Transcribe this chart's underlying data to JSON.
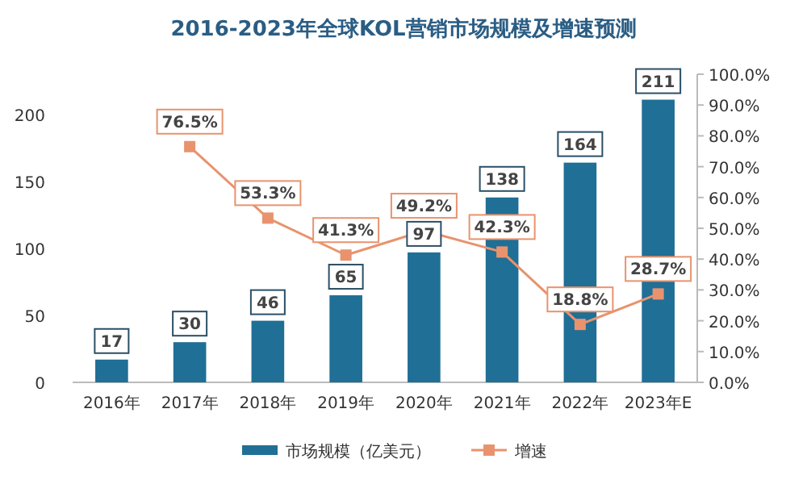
{
  "chart_data": {
    "type": "bar",
    "title": "2016-2023年全球KOL营销市场规模及增速预测",
    "categories": [
      "2016年",
      "2017年",
      "2018年",
      "2019年",
      "2020年",
      "2021年",
      "2022年",
      "2023年E"
    ],
    "series": [
      {
        "name": "市场规模（亿美元）",
        "color": "#1f6f96",
        "values": [
          17,
          30,
          46,
          65,
          97,
          138,
          164,
          211
        ],
        "value_labels": [
          "17",
          "30",
          "46",
          "65",
          "97",
          "138",
          "164",
          "211"
        ]
      },
      {
        "name": "增速",
        "type": "line",
        "axis": "y2",
        "color": "#e8936e",
        "marker": "square",
        "values": [
          null,
          76.5,
          53.3,
          41.3,
          49.2,
          42.3,
          18.8,
          28.7
        ],
        "value_labels": [
          null,
          "76.5%",
          "53.3%",
          "41.3%",
          "49.2%",
          "42.3%",
          "18.8%",
          "28.7%"
        ]
      }
    ],
    "ylim": [
      0,
      230
    ],
    "yticks": [
      0,
      50,
      100,
      150,
      200
    ],
    "y2lim": [
      0,
      100
    ],
    "y2ticks": [
      {
        "value": 0,
        "label": "0.0%"
      },
      {
        "value": 10,
        "label": "10.0%"
      },
      {
        "value": 20,
        "label": "20.0%"
      },
      {
        "value": 30,
        "label": "30.0%"
      },
      {
        "value": 40,
        "label": "40.0%"
      },
      {
        "value": 50,
        "label": "50.0%"
      },
      {
        "value": 60,
        "label": "60.0%"
      },
      {
        "value": 70,
        "label": "70.0%"
      },
      {
        "value": 80,
        "label": "80.0%"
      },
      {
        "value": 90,
        "label": "90.0%"
      },
      {
        "value": 100,
        "label": "100.0%"
      }
    ],
    "grid": false,
    "legend": "bottom"
  }
}
